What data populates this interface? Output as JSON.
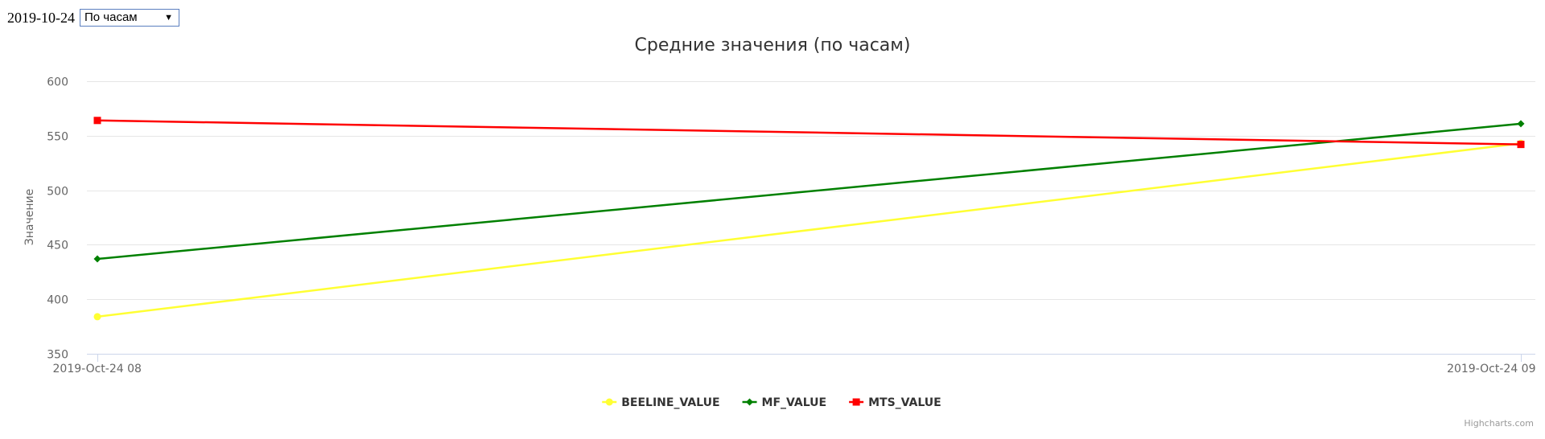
{
  "controls": {
    "date": "2019-10-24",
    "period_select": "По часам"
  },
  "chart_data": {
    "type": "line",
    "title": "Средние значения (по часам)",
    "xlabel": "",
    "ylabel": "Значение",
    "x": [
      "2019-Oct-24 08",
      "2019-Oct-24 09"
    ],
    "ylim": [
      350,
      600
    ],
    "yticks": [
      350,
      400,
      450,
      500,
      550,
      600
    ],
    "grid": true,
    "legend": "bottom-center",
    "series": [
      {
        "name": "BEELINE_VALUE",
        "color": "#ffff33",
        "marker": "circle",
        "values": [
          384,
          543
        ]
      },
      {
        "name": "MF_VALUE",
        "color": "#008000",
        "marker": "diamond",
        "values": [
          437,
          561
        ]
      },
      {
        "name": "MTS_VALUE",
        "color": "#ff0000",
        "marker": "square",
        "values": [
          564,
          542
        ]
      }
    ],
    "credits": "Highcharts.com"
  }
}
